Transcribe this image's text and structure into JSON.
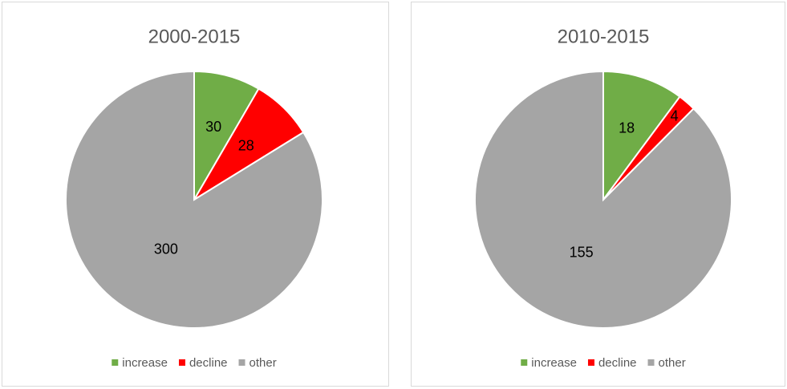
{
  "chart_data": [
    {
      "type": "pie",
      "title": "2000-2015",
      "categories": [
        "increase",
        "decline",
        "other"
      ],
      "values": [
        30,
        28,
        300
      ],
      "colors": [
        "#70ad47",
        "#ff0000",
        "#a5a5a5"
      ]
    },
    {
      "type": "pie",
      "title": "2010-2015",
      "categories": [
        "increase",
        "decline",
        "other"
      ],
      "values": [
        18,
        4,
        155
      ],
      "colors": [
        "#70ad47",
        "#ff0000",
        "#a5a5a5"
      ]
    }
  ]
}
